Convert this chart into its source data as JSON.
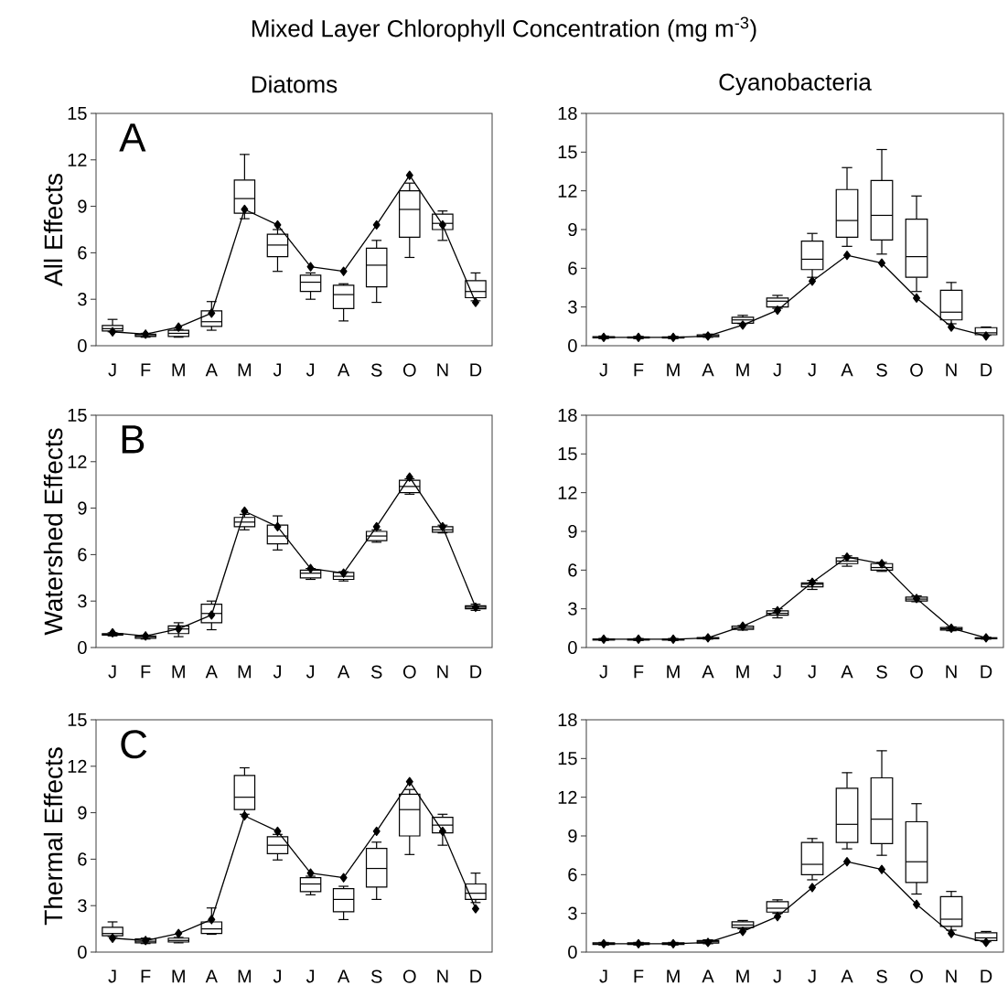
{
  "chart_data": [
    {
      "type": "box",
      "title": "Mixed Layer Chlorophyll Concentration (mg m$^{-3}$)",
      "subtitle": "Diatoms",
      "ylabel": "All Effects",
      "annotations": [
        "A"
      ],
      "categories": [
        "J",
        "F",
        "M",
        "A",
        "M",
        "J",
        "J",
        "A",
        "S",
        "O",
        "N",
        "D"
      ],
      "ylim": [
        0,
        15
      ],
      "yticks": [
        0,
        3,
        6,
        9,
        12,
        15
      ],
      "series": [
        {
          "type": "box",
          "color": "#000000",
          "boxes": [
            {
              "low": 0.9,
              "q1": 0.95,
              "median": 1.1,
              "q3": 1.3,
              "high": 1.7
            },
            {
              "low": 0.55,
              "q1": 0.6,
              "median": 0.65,
              "q3": 0.75,
              "high": 0.8
            },
            {
              "low": 0.55,
              "q1": 0.6,
              "median": 0.8,
              "q3": 1.0,
              "high": 1.05
            },
            {
              "low": 1.0,
              "q1": 1.25,
              "median": 1.55,
              "q3": 2.25,
              "high": 2.85
            },
            {
              "low": 8.2,
              "q1": 8.55,
              "median": 9.5,
              "q3": 10.7,
              "high": 12.35
            },
            {
              "low": 4.8,
              "q1": 5.75,
              "median": 6.5,
              "q3": 7.2,
              "high": 7.5
            },
            {
              "low": 3.0,
              "q1": 3.5,
              "median": 4.1,
              "q3": 4.55,
              "high": 4.7
            },
            {
              "low": 1.6,
              "q1": 2.4,
              "median": 3.3,
              "q3": 3.9,
              "high": 4.0
            },
            {
              "low": 2.8,
              "q1": 3.8,
              "median": 5.2,
              "q3": 6.3,
              "high": 6.8
            },
            {
              "low": 5.7,
              "q1": 7.0,
              "median": 8.8,
              "q3": 10.0,
              "high": 10.5
            },
            {
              "low": 6.8,
              "q1": 7.5,
              "median": 7.9,
              "q3": 8.5,
              "high": 8.7
            },
            {
              "low": 2.9,
              "q1": 3.1,
              "median": 3.5,
              "q3": 4.2,
              "high": 4.7
            }
          ]
        },
        {
          "type": "line",
          "color": "#000000",
          "marker": "diamond",
          "values": [
            0.9,
            0.75,
            1.2,
            2.1,
            8.8,
            7.8,
            5.1,
            4.8,
            7.8,
            11.0,
            7.8,
            2.8
          ]
        }
      ]
    },
    {
      "type": "box",
      "subtitle": "Cyanobacteria",
      "categories": [
        "J",
        "F",
        "M",
        "A",
        "M",
        "J",
        "J",
        "A",
        "S",
        "O",
        "N",
        "D"
      ],
      "ylim": [
        0,
        18
      ],
      "yticks": [
        0,
        3,
        6,
        9,
        12,
        15,
        18
      ],
      "series": [
        {
          "type": "box",
          "color": "#000000",
          "boxes": [
            {
              "low": 0.55,
              "q1": 0.6,
              "median": 0.65,
              "q3": 0.7,
              "high": 0.75
            },
            {
              "low": 0.55,
              "q1": 0.6,
              "median": 0.62,
              "q3": 0.68,
              "high": 0.72
            },
            {
              "low": 0.55,
              "q1": 0.6,
              "median": 0.62,
              "q3": 0.68,
              "high": 0.72
            },
            {
              "low": 0.65,
              "q1": 0.7,
              "median": 0.78,
              "q3": 0.85,
              "high": 0.9
            },
            {
              "low": 1.7,
              "q1": 1.75,
              "median": 2.0,
              "q3": 2.2,
              "high": 2.35
            },
            {
              "low": 2.9,
              "q1": 3.0,
              "median": 3.45,
              "q3": 3.7,
              "high": 3.9
            },
            {
              "low": 5.3,
              "q1": 5.9,
              "median": 6.7,
              "q3": 8.1,
              "high": 8.7
            },
            {
              "low": 7.7,
              "q1": 8.4,
              "median": 9.7,
              "q3": 12.1,
              "high": 13.8
            },
            {
              "low": 7.1,
              "q1": 8.2,
              "median": 10.1,
              "q3": 12.8,
              "high": 15.2
            },
            {
              "low": 4.2,
              "q1": 5.3,
              "median": 6.9,
              "q3": 9.8,
              "high": 11.6
            },
            {
              "low": 1.7,
              "q1": 2.0,
              "median": 2.6,
              "q3": 4.3,
              "high": 4.9
            },
            {
              "low": 0.8,
              "q1": 0.85,
              "median": 1.0,
              "q3": 1.4,
              "high": 1.45
            }
          ]
        },
        {
          "type": "line",
          "color": "#000000",
          "marker": "diamond",
          "values": [
            0.65,
            0.65,
            0.65,
            0.75,
            1.6,
            2.75,
            5.0,
            7.0,
            6.4,
            3.7,
            1.45,
            0.75
          ]
        }
      ]
    },
    {
      "type": "box",
      "ylabel": "Watershed Effects",
      "annotations": [
        "B"
      ],
      "categories": [
        "J",
        "F",
        "M",
        "A",
        "M",
        "J",
        "J",
        "A",
        "S",
        "O",
        "N",
        "D"
      ],
      "ylim": [
        0,
        15
      ],
      "yticks": [
        0,
        3,
        6,
        9,
        12,
        15
      ],
      "series": [
        {
          "type": "box",
          "color": "#000000",
          "boxes": [
            {
              "low": 0.75,
              "q1": 0.8,
              "median": 0.85,
              "q3": 0.9,
              "high": 0.95
            },
            {
              "low": 0.55,
              "q1": 0.6,
              "median": 0.7,
              "q3": 0.75,
              "high": 0.8
            },
            {
              "low": 0.7,
              "q1": 0.9,
              "median": 1.2,
              "q3": 1.4,
              "high": 1.6
            },
            {
              "low": 1.15,
              "q1": 1.6,
              "median": 2.2,
              "q3": 2.8,
              "high": 3.0
            },
            {
              "low": 7.6,
              "q1": 7.8,
              "median": 8.1,
              "q3": 8.4,
              "high": 8.6
            },
            {
              "low": 6.3,
              "q1": 6.7,
              "median": 7.2,
              "q3": 7.9,
              "high": 8.5
            },
            {
              "low": 4.4,
              "q1": 4.5,
              "median": 4.8,
              "q3": 5.0,
              "high": 5.1
            },
            {
              "low": 4.3,
              "q1": 4.4,
              "median": 4.6,
              "q3": 4.85,
              "high": 4.9
            },
            {
              "low": 6.8,
              "q1": 6.9,
              "median": 7.2,
              "q3": 7.5,
              "high": 7.6
            },
            {
              "low": 9.9,
              "q1": 10.0,
              "median": 10.4,
              "q3": 10.8,
              "high": 10.9
            },
            {
              "low": 7.4,
              "q1": 7.45,
              "median": 7.6,
              "q3": 7.8,
              "high": 7.9
            },
            {
              "low": 2.4,
              "q1": 2.5,
              "median": 2.6,
              "q3": 2.7,
              "high": 2.8
            }
          ]
        },
        {
          "type": "line",
          "color": "#000000",
          "marker": "diamond",
          "values": [
            0.95,
            0.75,
            1.2,
            2.1,
            8.8,
            7.8,
            5.1,
            4.8,
            7.8,
            11.0,
            7.8,
            2.6
          ]
        }
      ]
    },
    {
      "type": "box",
      "categories": [
        "J",
        "F",
        "M",
        "A",
        "M",
        "J",
        "J",
        "A",
        "S",
        "O",
        "N",
        "D"
      ],
      "ylim": [
        0,
        18
      ],
      "yticks": [
        0,
        3,
        6,
        9,
        12,
        15,
        18
      ],
      "series": [
        {
          "type": "box",
          "color": "#000000",
          "boxes": [
            {
              "low": 0.55,
              "q1": 0.58,
              "median": 0.62,
              "q3": 0.66,
              "high": 0.7
            },
            {
              "low": 0.55,
              "q1": 0.58,
              "median": 0.62,
              "q3": 0.66,
              "high": 0.7
            },
            {
              "low": 0.55,
              "q1": 0.58,
              "median": 0.62,
              "q3": 0.66,
              "high": 0.7
            },
            {
              "low": 0.65,
              "q1": 0.68,
              "median": 0.72,
              "q3": 0.78,
              "high": 0.8
            },
            {
              "low": 1.35,
              "q1": 1.4,
              "median": 1.5,
              "q3": 1.65,
              "high": 1.7
            },
            {
              "low": 2.3,
              "q1": 2.5,
              "median": 2.65,
              "q3": 2.85,
              "high": 3.0
            },
            {
              "low": 4.5,
              "q1": 4.7,
              "median": 4.9,
              "q3": 5.0,
              "high": 5.2
            },
            {
              "low": 6.3,
              "q1": 6.5,
              "median": 6.7,
              "q3": 6.95,
              "high": 7.1
            },
            {
              "low": 5.9,
              "q1": 6.0,
              "median": 6.2,
              "q3": 6.5,
              "high": 6.6
            },
            {
              "low": 3.55,
              "q1": 3.6,
              "median": 3.75,
              "q3": 3.9,
              "high": 4.0
            },
            {
              "low": 1.3,
              "q1": 1.35,
              "median": 1.45,
              "q3": 1.55,
              "high": 1.6
            },
            {
              "low": 0.65,
              "q1": 0.68,
              "median": 0.72,
              "q3": 0.76,
              "high": 0.8
            }
          ]
        },
        {
          "type": "line",
          "color": "#000000",
          "marker": "diamond",
          "values": [
            0.65,
            0.65,
            0.65,
            0.75,
            1.65,
            2.85,
            5.05,
            7.0,
            6.5,
            3.8,
            1.5,
            0.75
          ]
        }
      ]
    },
    {
      "type": "box",
      "ylabel": "Thermal Effects",
      "annotations": [
        "C"
      ],
      "categories": [
        "J",
        "F",
        "M",
        "A",
        "M",
        "J",
        "J",
        "A",
        "S",
        "O",
        "N",
        "D"
      ],
      "ylim": [
        0,
        15
      ],
      "yticks": [
        0,
        3,
        6,
        9,
        12,
        15
      ],
      "series": [
        {
          "type": "box",
          "color": "#000000",
          "boxes": [
            {
              "low": 1.0,
              "q1": 1.05,
              "median": 1.2,
              "q3": 1.6,
              "high": 1.95
            },
            {
              "low": 0.55,
              "q1": 0.6,
              "median": 0.7,
              "q3": 0.85,
              "high": 0.9
            },
            {
              "low": 0.6,
              "q1": 0.65,
              "median": 0.75,
              "q3": 0.9,
              "high": 0.95
            },
            {
              "low": 1.15,
              "q1": 1.2,
              "median": 1.5,
              "q3": 1.95,
              "high": 2.85
            },
            {
              "low": 8.9,
              "q1": 9.2,
              "median": 10.0,
              "q3": 11.4,
              "high": 11.9
            },
            {
              "low": 5.95,
              "q1": 6.35,
              "median": 6.9,
              "q3": 7.45,
              "high": 7.6
            },
            {
              "low": 3.7,
              "q1": 3.9,
              "median": 4.4,
              "q3": 4.8,
              "high": 4.9
            },
            {
              "low": 2.1,
              "q1": 2.6,
              "median": 3.4,
              "q3": 4.1,
              "high": 4.25
            },
            {
              "low": 3.4,
              "q1": 4.2,
              "median": 5.4,
              "q3": 6.7,
              "high": 7.1
            },
            {
              "low": 6.3,
              "q1": 7.5,
              "median": 9.2,
              "q3": 10.2,
              "high": 10.5
            },
            {
              "low": 6.9,
              "q1": 7.7,
              "median": 8.2,
              "q3": 8.7,
              "high": 8.9
            },
            {
              "low": 3.2,
              "q1": 3.4,
              "median": 3.8,
              "q3": 4.4,
              "high": 5.1
            }
          ]
        },
        {
          "type": "line",
          "color": "#000000",
          "marker": "diamond",
          "values": [
            0.9,
            0.75,
            1.2,
            2.1,
            8.8,
            7.8,
            5.1,
            4.8,
            7.8,
            11.0,
            7.8,
            2.8
          ]
        }
      ]
    },
    {
      "type": "box",
      "categories": [
        "J",
        "F",
        "M",
        "A",
        "M",
        "J",
        "J",
        "A",
        "S",
        "O",
        "N",
        "D"
      ],
      "ylim": [
        0,
        18
      ],
      "yticks": [
        0,
        3,
        6,
        9,
        12,
        15,
        18
      ],
      "series": [
        {
          "type": "box",
          "color": "#000000",
          "boxes": [
            {
              "low": 0.55,
              "q1": 0.6,
              "median": 0.65,
              "q3": 0.72,
              "high": 0.75
            },
            {
              "low": 0.55,
              "q1": 0.6,
              "median": 0.65,
              "q3": 0.72,
              "high": 0.75
            },
            {
              "low": 0.55,
              "q1": 0.6,
              "median": 0.65,
              "q3": 0.72,
              "high": 0.75
            },
            {
              "low": 0.65,
              "q1": 0.7,
              "median": 0.8,
              "q3": 0.9,
              "high": 0.95
            },
            {
              "low": 1.8,
              "q1": 1.9,
              "median": 2.1,
              "q3": 2.35,
              "high": 2.45
            },
            {
              "low": 3.0,
              "q1": 3.1,
              "median": 3.4,
              "q3": 3.9,
              "high": 4.05
            },
            {
              "low": 5.6,
              "q1": 6.0,
              "median": 6.8,
              "q3": 8.5,
              "high": 8.8
            },
            {
              "low": 8.0,
              "q1": 8.5,
              "median": 9.9,
              "q3": 12.7,
              "high": 13.9
            },
            {
              "low": 7.5,
              "q1": 8.4,
              "median": 10.3,
              "q3": 13.5,
              "high": 15.6
            },
            {
              "low": 4.5,
              "q1": 5.4,
              "median": 7.0,
              "q3": 10.1,
              "high": 11.5
            },
            {
              "low": 1.7,
              "q1": 2.0,
              "median": 2.55,
              "q3": 4.3,
              "high": 4.7
            },
            {
              "low": 0.8,
              "q1": 0.9,
              "median": 1.1,
              "q3": 1.5,
              "high": 1.6
            }
          ]
        },
        {
          "type": "line",
          "color": "#000000",
          "marker": "diamond",
          "values": [
            0.65,
            0.65,
            0.65,
            0.75,
            1.6,
            2.75,
            5.0,
            7.0,
            6.4,
            3.7,
            1.45,
            0.75
          ]
        }
      ]
    }
  ]
}
